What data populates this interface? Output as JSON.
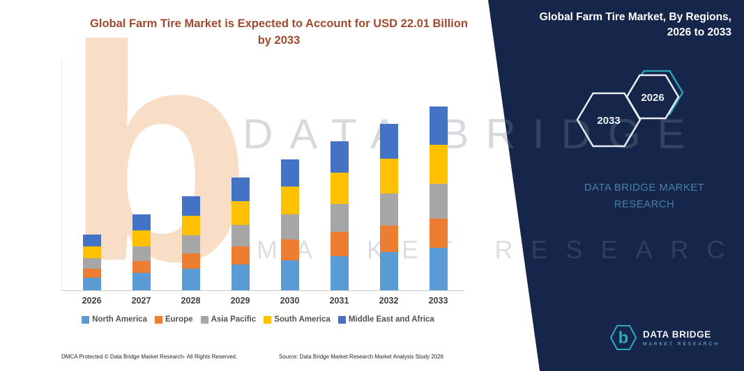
{
  "chart": {
    "title_line1": "Global Farm Tire Market is Expected to Account for USD 22.01 Billion",
    "title_line2": "by 2033"
  },
  "chart_data": {
    "type": "bar",
    "stacked": true,
    "title": "Global Farm Tire Market is Expected to Account for USD 22.01 Billion by 2033",
    "unit": "USD Billion",
    "values_estimated": true,
    "categories": [
      "2026",
      "2027",
      "2028",
      "2029",
      "2030",
      "2031",
      "2032",
      "2033"
    ],
    "series": [
      {
        "name": "North America",
        "color": "#5B9BD5",
        "values": [
          1.53,
          2.08,
          2.6,
          3.1,
          3.61,
          4.11,
          4.58,
          5.07
        ]
      },
      {
        "name": "Europe",
        "color": "#ED7D31",
        "values": [
          1.06,
          1.45,
          1.81,
          2.15,
          2.51,
          2.86,
          3.19,
          3.52
        ]
      },
      {
        "name": "Asia Pacific",
        "color": "#A6A6A6",
        "values": [
          1.26,
          1.72,
          2.15,
          2.56,
          2.98,
          3.39,
          3.79,
          4.18
        ]
      },
      {
        "name": "South America",
        "color": "#FFC000",
        "values": [
          1.39,
          1.9,
          2.37,
          2.83,
          3.3,
          3.75,
          4.19,
          4.62
        ]
      },
      {
        "name": "Middle East and Africa",
        "color": "#4472C4",
        "values": [
          1.39,
          1.9,
          2.37,
          2.83,
          3.3,
          3.75,
          4.19,
          4.62
        ]
      }
    ],
    "totals": [
      6.63,
      9.05,
      11.3,
      13.47,
      15.7,
      17.86,
      19.94,
      22.01
    ],
    "xlabel": "",
    "ylabel": "",
    "y_axis_visible": false,
    "grid": false,
    "legend_position": "bottom"
  },
  "right_panel": {
    "title_line1": "Global Farm Tire Market, By Regions,",
    "title_line2": "2026 to 2033",
    "hexagons": [
      {
        "label": "2033"
      },
      {
        "label": "2026"
      }
    ],
    "watermark_line1": "DATA BRIDGE MARKET",
    "watermark_line2": "RESEARCH",
    "logo": {
      "glyph": "b",
      "name": "DATA BRIDGE",
      "sub": "MARKET RESEARCH"
    }
  },
  "watermarks": {
    "letter_b": "b",
    "line1": "DATA BRIDGE",
    "line2": "MARKET RESEARCH"
  },
  "footer": {
    "dmca": "DMCA Protected © Data Bridge Market Research-  All Rights Reserved.",
    "source": "Source: Data Bridge Market Research  Market Analysis Study 2026"
  },
  "colors": {
    "navy_panel": "#16254A",
    "teal_accent": "#2FA9BD",
    "title_text": "#9E4A2F",
    "watermark_orange": "#F7D9BD"
  }
}
